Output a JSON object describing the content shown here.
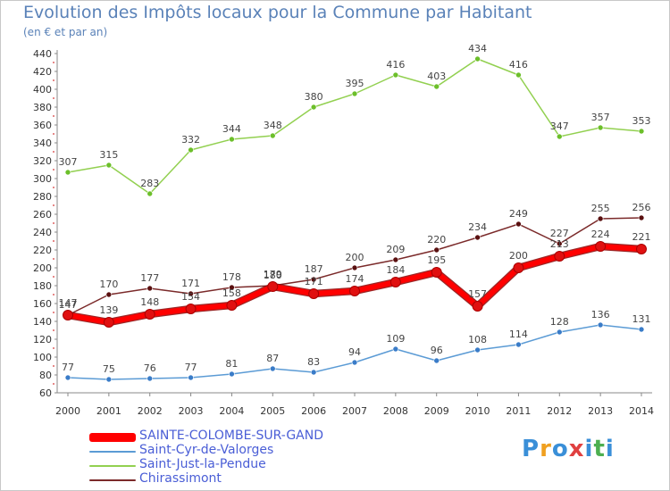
{
  "title": "Evolution des Impôts locaux pour la Commune par Habitant",
  "subtitle": "(en € et par an)",
  "logo": {
    "letters": [
      "P",
      "r",
      "o",
      "x",
      "i",
      "t",
      "i"
    ],
    "colors": [
      "#3a8fd8",
      "#f0a020",
      "#3a8fd8",
      "#e04040",
      "#3a8fd8",
      "#4caf50",
      "#3a8fd8"
    ]
  },
  "chart_data": {
    "type": "line",
    "x": [
      "2000",
      "2001",
      "2002",
      "2003",
      "2004",
      "2005",
      "2006",
      "2007",
      "2008",
      "2009",
      "2010",
      "2011",
      "2012",
      "2013",
      "2014"
    ],
    "ylim": [
      60,
      440
    ],
    "yticks": [
      60,
      80,
      100,
      120,
      140,
      160,
      180,
      200,
      220,
      240,
      260,
      280,
      300,
      320,
      340,
      360,
      380,
      400,
      420,
      440
    ],
    "grid": false,
    "legend_position": "bottom-left",
    "series": [
      {
        "name": "SAINTE-COLOMBE-SUR-GAND",
        "color": "#ff0000",
        "marker_color": "#e01010",
        "width": 6,
        "values": [
          147,
          139,
          148,
          154,
          158,
          179,
          171,
          174,
          184,
          195,
          157,
          200,
          213,
          224,
          221
        ]
      },
      {
        "name": "Saint-Cyr-de-Valorges",
        "color": "#5b9bd5",
        "marker_color": "#3a7cc8",
        "width": 1.5,
        "values": [
          77,
          75,
          76,
          77,
          81,
          87,
          83,
          94,
          109,
          96,
          108,
          114,
          128,
          136,
          131
        ]
      },
      {
        "name": "Saint-Just-la-Pendue",
        "color": "#92d050",
        "marker_color": "#6cbf2a",
        "width": 1.5,
        "values": [
          307,
          315,
          283,
          332,
          344,
          348,
          380,
          395,
          416,
          403,
          434,
          416,
          347,
          357,
          353
        ]
      },
      {
        "name": "Chirassimont",
        "color": "#7b2a2a",
        "marker_color": "#5a1010",
        "width": 1.5,
        "values": [
          147,
          170,
          177,
          171,
          178,
          180,
          187,
          200,
          209,
          220,
          234,
          249,
          227,
          255,
          256
        ]
      }
    ]
  }
}
